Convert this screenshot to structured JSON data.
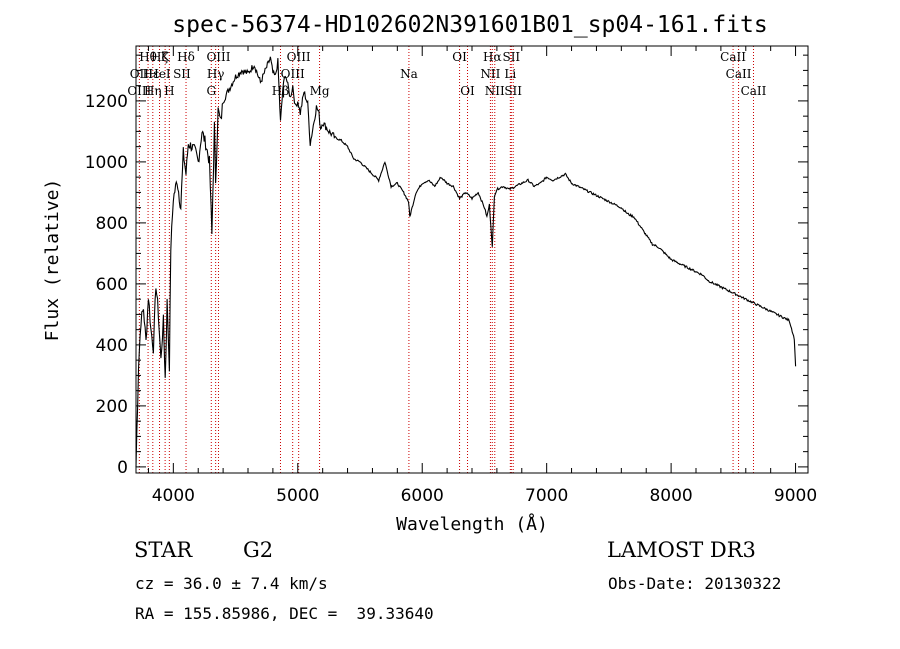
{
  "chart_data": {
    "type": "line",
    "title": "spec-56374-HD102602N391601B01_sp04-161.fits",
    "xlabel": "Wavelength (Å)",
    "ylabel": "Flux (relative)",
    "xlim": [
      3700,
      9100
    ],
    "ylim": [
      -20,
      1380
    ],
    "xticks": [
      4000,
      5000,
      6000,
      7000,
      8000,
      9000
    ],
    "yticks": [
      0,
      200,
      400,
      600,
      800,
      1000,
      1200
    ],
    "grid": false,
    "colors": {
      "spectrum": "#000000",
      "lines": "#cc0000"
    },
    "series": [
      {
        "name": "flux",
        "x": [
          3700,
          3720,
          3740,
          3760,
          3780,
          3800,
          3820,
          3840,
          3860,
          3880,
          3900,
          3920,
          3935,
          3950,
          3968,
          3980,
          4000,
          4030,
          4060,
          4080,
          4102,
          4120,
          4150,
          4180,
          4200,
          4230,
          4260,
          4290,
          4310,
          4330,
          4340,
          4360,
          4380,
          4400,
          4450,
          4500,
          4550,
          4600,
          4650,
          4700,
          4750,
          4780,
          4800,
          4820,
          4840,
          4861,
          4880,
          4900,
          4920,
          4940,
          4960,
          4980,
          5000,
          5020,
          5050,
          5080,
          5100,
          5150,
          5170,
          5183,
          5200,
          5250,
          5300,
          5350,
          5400,
          5450,
          5500,
          5550,
          5600,
          5650,
          5700,
          5750,
          5800,
          5850,
          5890,
          5900,
          5950,
          6000,
          6050,
          6100,
          6150,
          6200,
          6250,
          6300,
          6350,
          6400,
          6450,
          6500,
          6520,
          6540,
          6563,
          6580,
          6600,
          6650,
          6700,
          6750,
          6800,
          6850,
          6900,
          6950,
          7000,
          7050,
          7100,
          7150,
          7200,
          7250,
          7300,
          7350,
          7400,
          7450,
          7500,
          7550,
          7600,
          7650,
          7700,
          7750,
          7800,
          7850,
          7900,
          7950,
          8000,
          8050,
          8100,
          8150,
          8200,
          8250,
          8300,
          8350,
          8400,
          8450,
          8500,
          8550,
          8600,
          8650,
          8700,
          8750,
          8800,
          8850,
          8900,
          8950,
          8990,
          9000
        ],
        "values": [
          0,
          330,
          480,
          520,
          410,
          560,
          450,
          390,
          600,
          500,
          350,
          480,
          290,
          540,
          330,
          720,
          880,
          940,
          850,
          1030,
          960,
          1060,
          1050,
          1030,
          1000,
          1100,
          1060,
          1000,
          760,
          1120,
          940,
          1170,
          1130,
          1200,
          1240,
          1280,
          1300,
          1290,
          1320,
          1260,
          1310,
          1340,
          1290,
          1280,
          1330,
          1130,
          1240,
          1290,
          1250,
          1210,
          1250,
          1180,
          1200,
          1160,
          1230,
          1190,
          1060,
          1180,
          1160,
          1110,
          1130,
          1100,
          1080,
          1070,
          1050,
          1010,
          1000,
          980,
          960,
          940,
          1000,
          920,
          930,
          900,
          870,
          820,
          900,
          930,
          940,
          920,
          950,
          930,
          920,
          880,
          900,
          880,
          900,
          850,
          820,
          860,
          720,
          890,
          910,
          920,
          910,
          920,
          930,
          940,
          920,
          930,
          950,
          940,
          950,
          960,
          930,
          920,
          910,
          900,
          890,
          880,
          870,
          860,
          850,
          830,
          820,
          790,
          760,
          730,
          720,
          700,
          680,
          670,
          660,
          650,
          640,
          630,
          610,
          600,
          590,
          580,
          570,
          560,
          550,
          540,
          530,
          520,
          510,
          500,
          490,
          480,
          420,
          330
        ]
      }
    ],
    "annotations": [
      {
        "label": "Hθ",
        "x": 3797,
        "row": 1
      },
      {
        "label": "OII",
        "x": 3727,
        "row": 2
      },
      {
        "label": "OIII",
        "x": 3727,
        "row": 3
      },
      {
        "label": "Hε",
        "x": 3820,
        "row": 2
      },
      {
        "label": "Hη",
        "x": 3835,
        "row": 3
      },
      {
        "label": "Hζ",
        "x": 3889,
        "row": 1
      },
      {
        "label": "K",
        "x": 3934,
        "row": 1
      },
      {
        "label": "H",
        "x": 3968,
        "row": 3
      },
      {
        "label": "HeI",
        "x": 3889,
        "row": 2
      },
      {
        "label": "SII",
        "x": 4069,
        "row": 2
      },
      {
        "label": "Hδ",
        "x": 4102,
        "row": 1
      },
      {
        "label": "OIII",
        "x": 4363,
        "row": 1
      },
      {
        "label": "Hγ",
        "x": 4340,
        "row": 2
      },
      {
        "label": "G",
        "x": 4305,
        "row": 3
      },
      {
        "label": "Hβ",
        "x": 4861,
        "row": 3
      },
      {
        "label": "OIII",
        "x": 5007,
        "row": 1
      },
      {
        "label": "OIII",
        "x": 4959,
        "row": 2
      },
      {
        "label": "Mg",
        "x": 5175,
        "row": 3
      },
      {
        "label": "Na",
        "x": 5893,
        "row": 2
      },
      {
        "label": "OI",
        "x": 6300,
        "row": 1
      },
      {
        "label": "OI",
        "x": 6364,
        "row": 3
      },
      {
        "label": "Hα",
        "x": 6563,
        "row": 1
      },
      {
        "label": "NII",
        "x": 6548,
        "row": 2
      },
      {
        "label": "NII",
        "x": 6583,
        "row": 3
      },
      {
        "label": "SII",
        "x": 6716,
        "row": 1
      },
      {
        "label": "Li",
        "x": 6708,
        "row": 2
      },
      {
        "label": "SII",
        "x": 6731,
        "row": 3
      },
      {
        "label": "CaII",
        "x": 8498,
        "row": 1
      },
      {
        "label": "CaII",
        "x": 8542,
        "row": 2
      },
      {
        "label": "CaII",
        "x": 8662,
        "row": 3
      }
    ],
    "line_positions": [
      3727,
      3797,
      3835,
      3889,
      3934,
      3968,
      4102,
      4305,
      4340,
      4363,
      4861,
      4959,
      5007,
      5175,
      5893,
      6300,
      6364,
      6548,
      6563,
      6583,
      6708,
      6716,
      6731,
      8498,
      8542,
      8662
    ]
  },
  "info": {
    "object_class": "STAR",
    "subclass": "G2",
    "survey": "LAMOST DR3",
    "redshift": "cz = 36.0 ± 7.4 km/s",
    "obs_date": "Obs-Date: 20130322",
    "coords": "RA = 155.85986, DEC =  39.33640"
  }
}
